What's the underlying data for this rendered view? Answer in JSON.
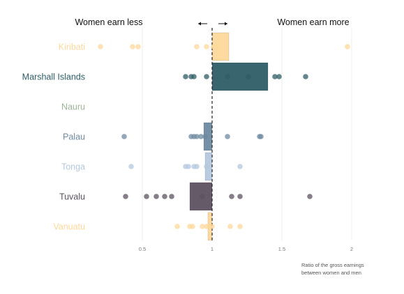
{
  "chart_data": {
    "type": "scatter",
    "headers": {
      "left": "Women earn less",
      "right": "Women earn more"
    },
    "xlabel_lines": [
      "Ratio of the gross earnings",
      "between women and men"
    ],
    "xlim": [
      0.0,
      2.05
    ],
    "xticks": [
      {
        "value": 0.5,
        "label": "0.5"
      },
      {
        "value": 1,
        "label": "1"
      },
      {
        "value": 1.5,
        "label": "1.5"
      },
      {
        "value": 2,
        "label": "2"
      }
    ],
    "reference_line": 1,
    "grid": true,
    "bar_baseline": 1,
    "countries": [
      {
        "name": "Kiribati",
        "color": "#fdd89a",
        "bar": 1.12,
        "points": [
          0.2,
          0.43,
          0.47,
          0.89,
          0.96,
          1.01,
          1.03,
          1.97
        ]
      },
      {
        "name": "Marshall Islands",
        "color": "#2e5d66",
        "bar": 1.4,
        "points": [
          0.81,
          0.85,
          0.87,
          0.96,
          1.11,
          1.26,
          1.45,
          1.48,
          1.67
        ]
      },
      {
        "name": "Nauru",
        "color": "#9fb39a",
        "bar": null,
        "points": []
      },
      {
        "name": "Palau",
        "color": "#6e8aa0",
        "bar": 0.94,
        "points": [
          0.37,
          0.85,
          0.87,
          0.89,
          0.92,
          0.95,
          1.11,
          1.34,
          1.35
        ]
      },
      {
        "name": "Tonga",
        "color": "#b4c8dd",
        "bar": 0.95,
        "points": [
          0.42,
          0.81,
          0.83,
          0.87,
          0.89,
          0.96,
          1.2
        ]
      },
      {
        "name": "Tuvalu",
        "color": "#5c5160",
        "bar": 0.84,
        "points": [
          0.38,
          0.53,
          0.6,
          0.66,
          0.71,
          0.93,
          1.14,
          1.2,
          1.7
        ]
      },
      {
        "name": "Vanuatu",
        "color": "#fdd89a",
        "bar": 0.97,
        "points": [
          0.75,
          0.84,
          0.86,
          0.93,
          0.96,
          0.98,
          1.0,
          1.13,
          1.2
        ]
      }
    ]
  }
}
